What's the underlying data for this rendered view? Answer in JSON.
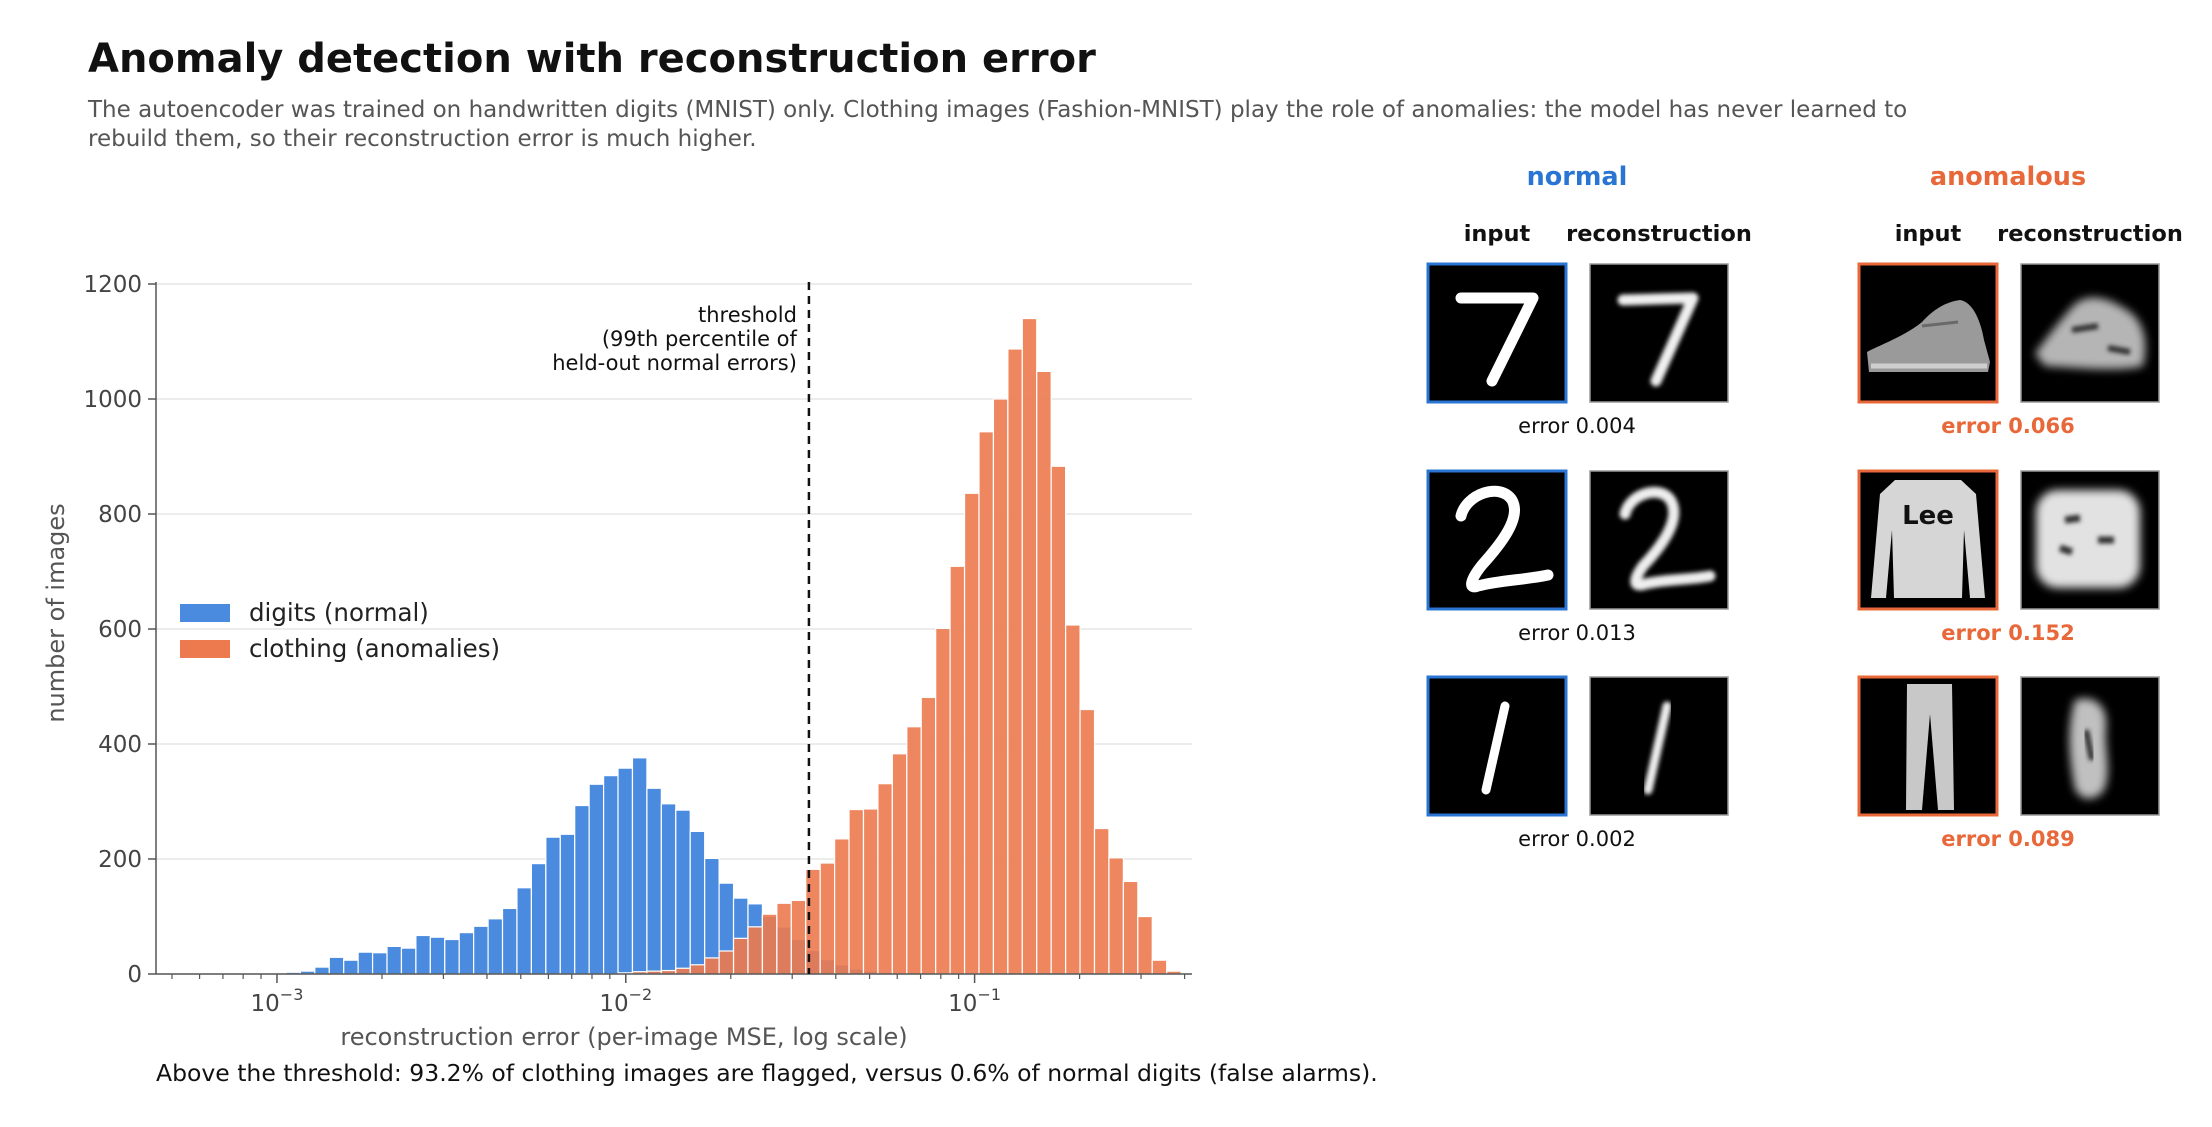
{
  "title": "Anomaly detection with reconstruction error",
  "subtitle": "The autoencoder was trained on handwritten digits (MNIST) only. Clothing images (Fashion-MNIST) play the role of anomalies: the model has never learned to rebuild them, so their reconstruction error is much higher.",
  "footnote": "Above the threshold: 93.2% of clothing images are flagged, versus 0.6% of normal digits (false alarms).",
  "colors": {
    "normal": "#4a8bdf",
    "anomaly": "#ec7a4e",
    "panel_blue": "#2a75d3",
    "panel_orange": "#e8683a"
  },
  "chart_data": {
    "type": "bar",
    "xlabel": "reconstruction error (per-image MSE, log scale)",
    "ylabel": "number of images",
    "xscale": "log",
    "xlim": [
      0.00045,
      0.42
    ],
    "ylim": [
      0,
      1200
    ],
    "yticks": [
      0,
      200,
      400,
      600,
      800,
      1000,
      1200
    ],
    "xticks": [
      {
        "value": 0.001,
        "base": "10",
        "exp": "−3"
      },
      {
        "value": 0.01,
        "base": "10",
        "exp": "−2"
      },
      {
        "value": 0.1,
        "base": "10",
        "exp": "−1"
      }
    ],
    "grid": "horizontal",
    "legend_position": "center-left",
    "bin_start": 0.00045,
    "bin_ratio": 1.1,
    "threshold": {
      "value": 0.0335,
      "label": [
        "threshold",
        "(99th percentile of",
        "held-out normal errors)"
      ]
    },
    "series": [
      {
        "name": "digits (normal)",
        "values": [
          0,
          0,
          0,
          0,
          0,
          0,
          0,
          0,
          2,
          3,
          5,
          12,
          29,
          24,
          38,
          37,
          48,
          45,
          67,
          64,
          60,
          72,
          83,
          96,
          114,
          150,
          192,
          238,
          243,
          293,
          330,
          345,
          358,
          376,
          323,
          296,
          285,
          248,
          201,
          158,
          132,
          122,
          100,
          82,
          60,
          41,
          25,
          16,
          9,
          5,
          3,
          1,
          0,
          0,
          0,
          0,
          0,
          0,
          0,
          0,
          0,
          0,
          0,
          0,
          0,
          0,
          0,
          0,
          0,
          0,
          0,
          0,
          0
        ]
      },
      {
        "name": "clothing (anomalies)",
        "values": [
          0,
          0,
          0,
          0,
          0,
          0,
          0,
          0,
          0,
          0,
          0,
          0,
          0,
          0,
          0,
          0,
          0,
          0,
          0,
          0,
          0,
          0,
          0,
          0,
          0,
          0,
          0,
          0,
          0,
          0,
          0,
          0,
          2,
          4,
          5,
          6,
          10,
          16,
          28,
          40,
          62,
          82,
          104,
          123,
          128,
          182,
          193,
          235,
          286,
          287,
          331,
          383,
          430,
          481,
          601,
          709,
          836,
          943,
          1000,
          1087,
          1140,
          1048,
          883,
          607,
          460,
          253,
          202,
          161,
          100,
          24,
          5,
          2,
          0
        ]
      }
    ]
  },
  "examples": {
    "normal_label": "normal",
    "anomalous_label": "anomalous",
    "input_label": "input",
    "reconstruction_label": "reconstruction",
    "normal": [
      {
        "digit": "7",
        "error": "error 0.004"
      },
      {
        "digit": "2",
        "error": "error 0.013"
      },
      {
        "digit": "1",
        "error": "error 0.002"
      }
    ],
    "anomalous": [
      {
        "item": "sneaker",
        "error": "error 0.066"
      },
      {
        "item": "sweater",
        "error": "error 0.152"
      },
      {
        "item": "trousers",
        "error": "error 0.089"
      }
    ]
  }
}
